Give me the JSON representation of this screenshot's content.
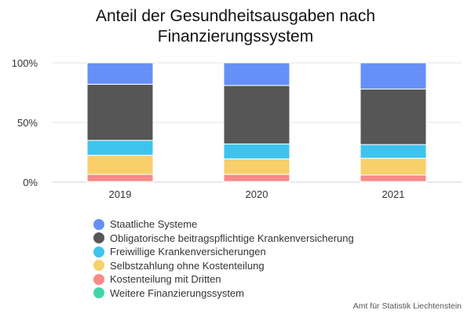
{
  "chart_data": {
    "type": "bar",
    "stacked": true,
    "title_lines": [
      "Anteil der Gesundheitsausgaben nach",
      "Finanzierungssystem"
    ],
    "source": "Amt für Statistik Liechtenstein",
    "categories": [
      "2019",
      "2020",
      "2021"
    ],
    "ylim": [
      0,
      100
    ],
    "yticks": [
      0,
      50,
      100
    ],
    "ytick_labels": [
      "0%",
      "50%",
      "100%"
    ],
    "grid": true,
    "legend_position": "bottom",
    "series": [
      {
        "name": "Weitere Finanzierungssystem",
        "color": "#3dd6ac",
        "values": [
          0.5,
          0.5,
          0.5
        ]
      },
      {
        "name": "Kostenteilung mit Dritten",
        "color": "#f88a8a",
        "values": [
          6,
          6,
          5.5
        ]
      },
      {
        "name": "Selbstzahlung ohne Kostenteilung",
        "color": "#f7cf6b",
        "values": [
          16,
          13,
          14
        ]
      },
      {
        "name": "Freiwillige Krankenversicherungen",
        "color": "#3ec3ef",
        "values": [
          12.5,
          12.5,
          11.5
        ]
      },
      {
        "name": "Obligatorische beitragspflichtige Krankenversicherung",
        "color": "#565656",
        "values": [
          47,
          49,
          46.5
        ]
      },
      {
        "name": "Staatliche Systeme",
        "color": "#6690f7",
        "values": [
          18,
          19,
          22
        ]
      }
    ]
  }
}
